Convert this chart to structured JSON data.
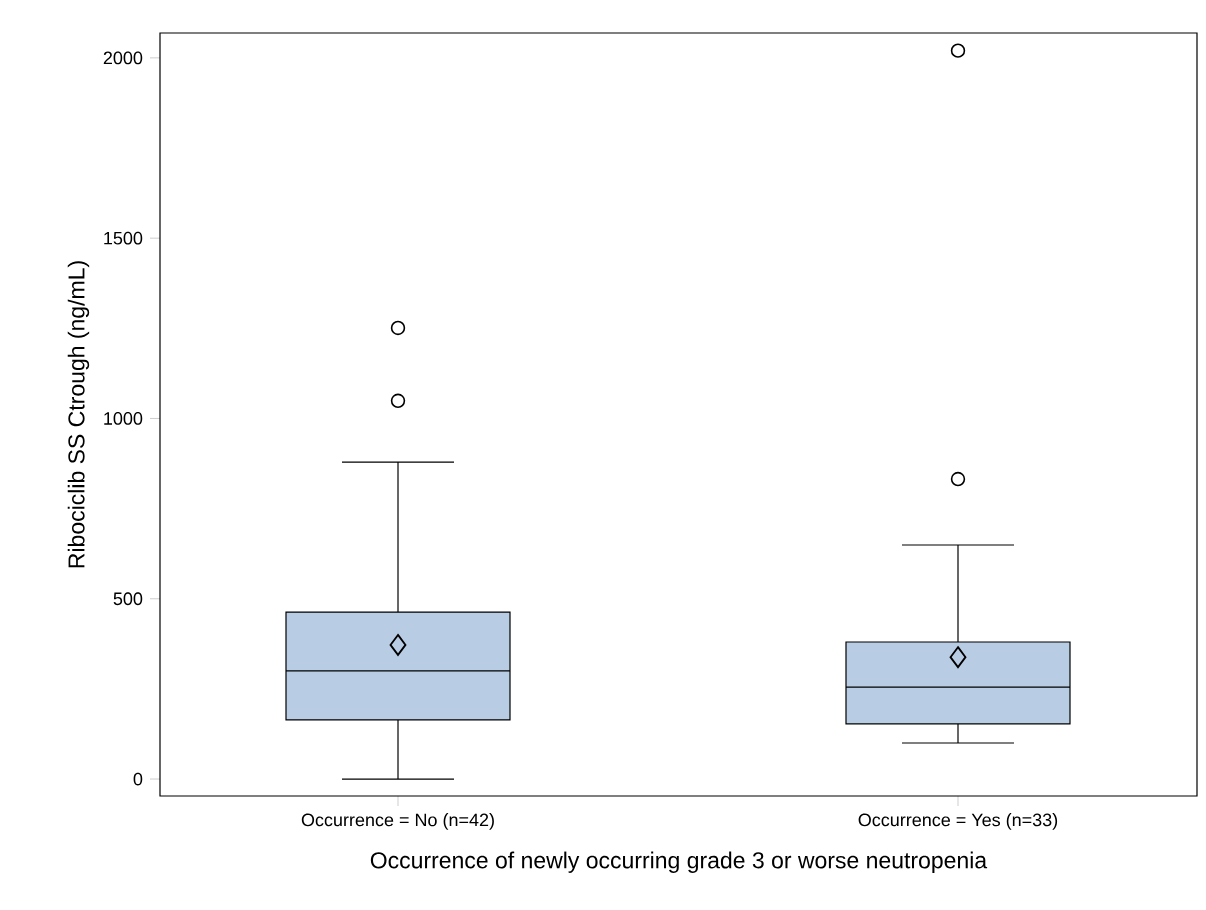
{
  "chart_data": {
    "type": "box",
    "xlabel": "Occurrence of newly occurring grade 3 or worse neutropenia",
    "ylabel": "Ribociclib SS Ctrough (ng/mL)",
    "categories": [
      "Occurrence = No (n=42)",
      "Occurrence = Yes (n=33)"
    ],
    "boxes": [
      {
        "low": 0,
        "q1": 164,
        "median": 300,
        "q3": 463,
        "high": 879,
        "mean": 372,
        "outliers": [
          1251,
          1049
        ]
      },
      {
        "low": 100,
        "q1": 153,
        "median": 255,
        "q3": 380,
        "high": 649,
        "mean": 338,
        "outliers": [
          832,
          2020
        ]
      }
    ],
    "color": "#b8cce4",
    "ylim": [
      -47,
      2069
    ],
    "yticks": [
      0,
      500,
      1000,
      1500,
      2000
    ]
  }
}
